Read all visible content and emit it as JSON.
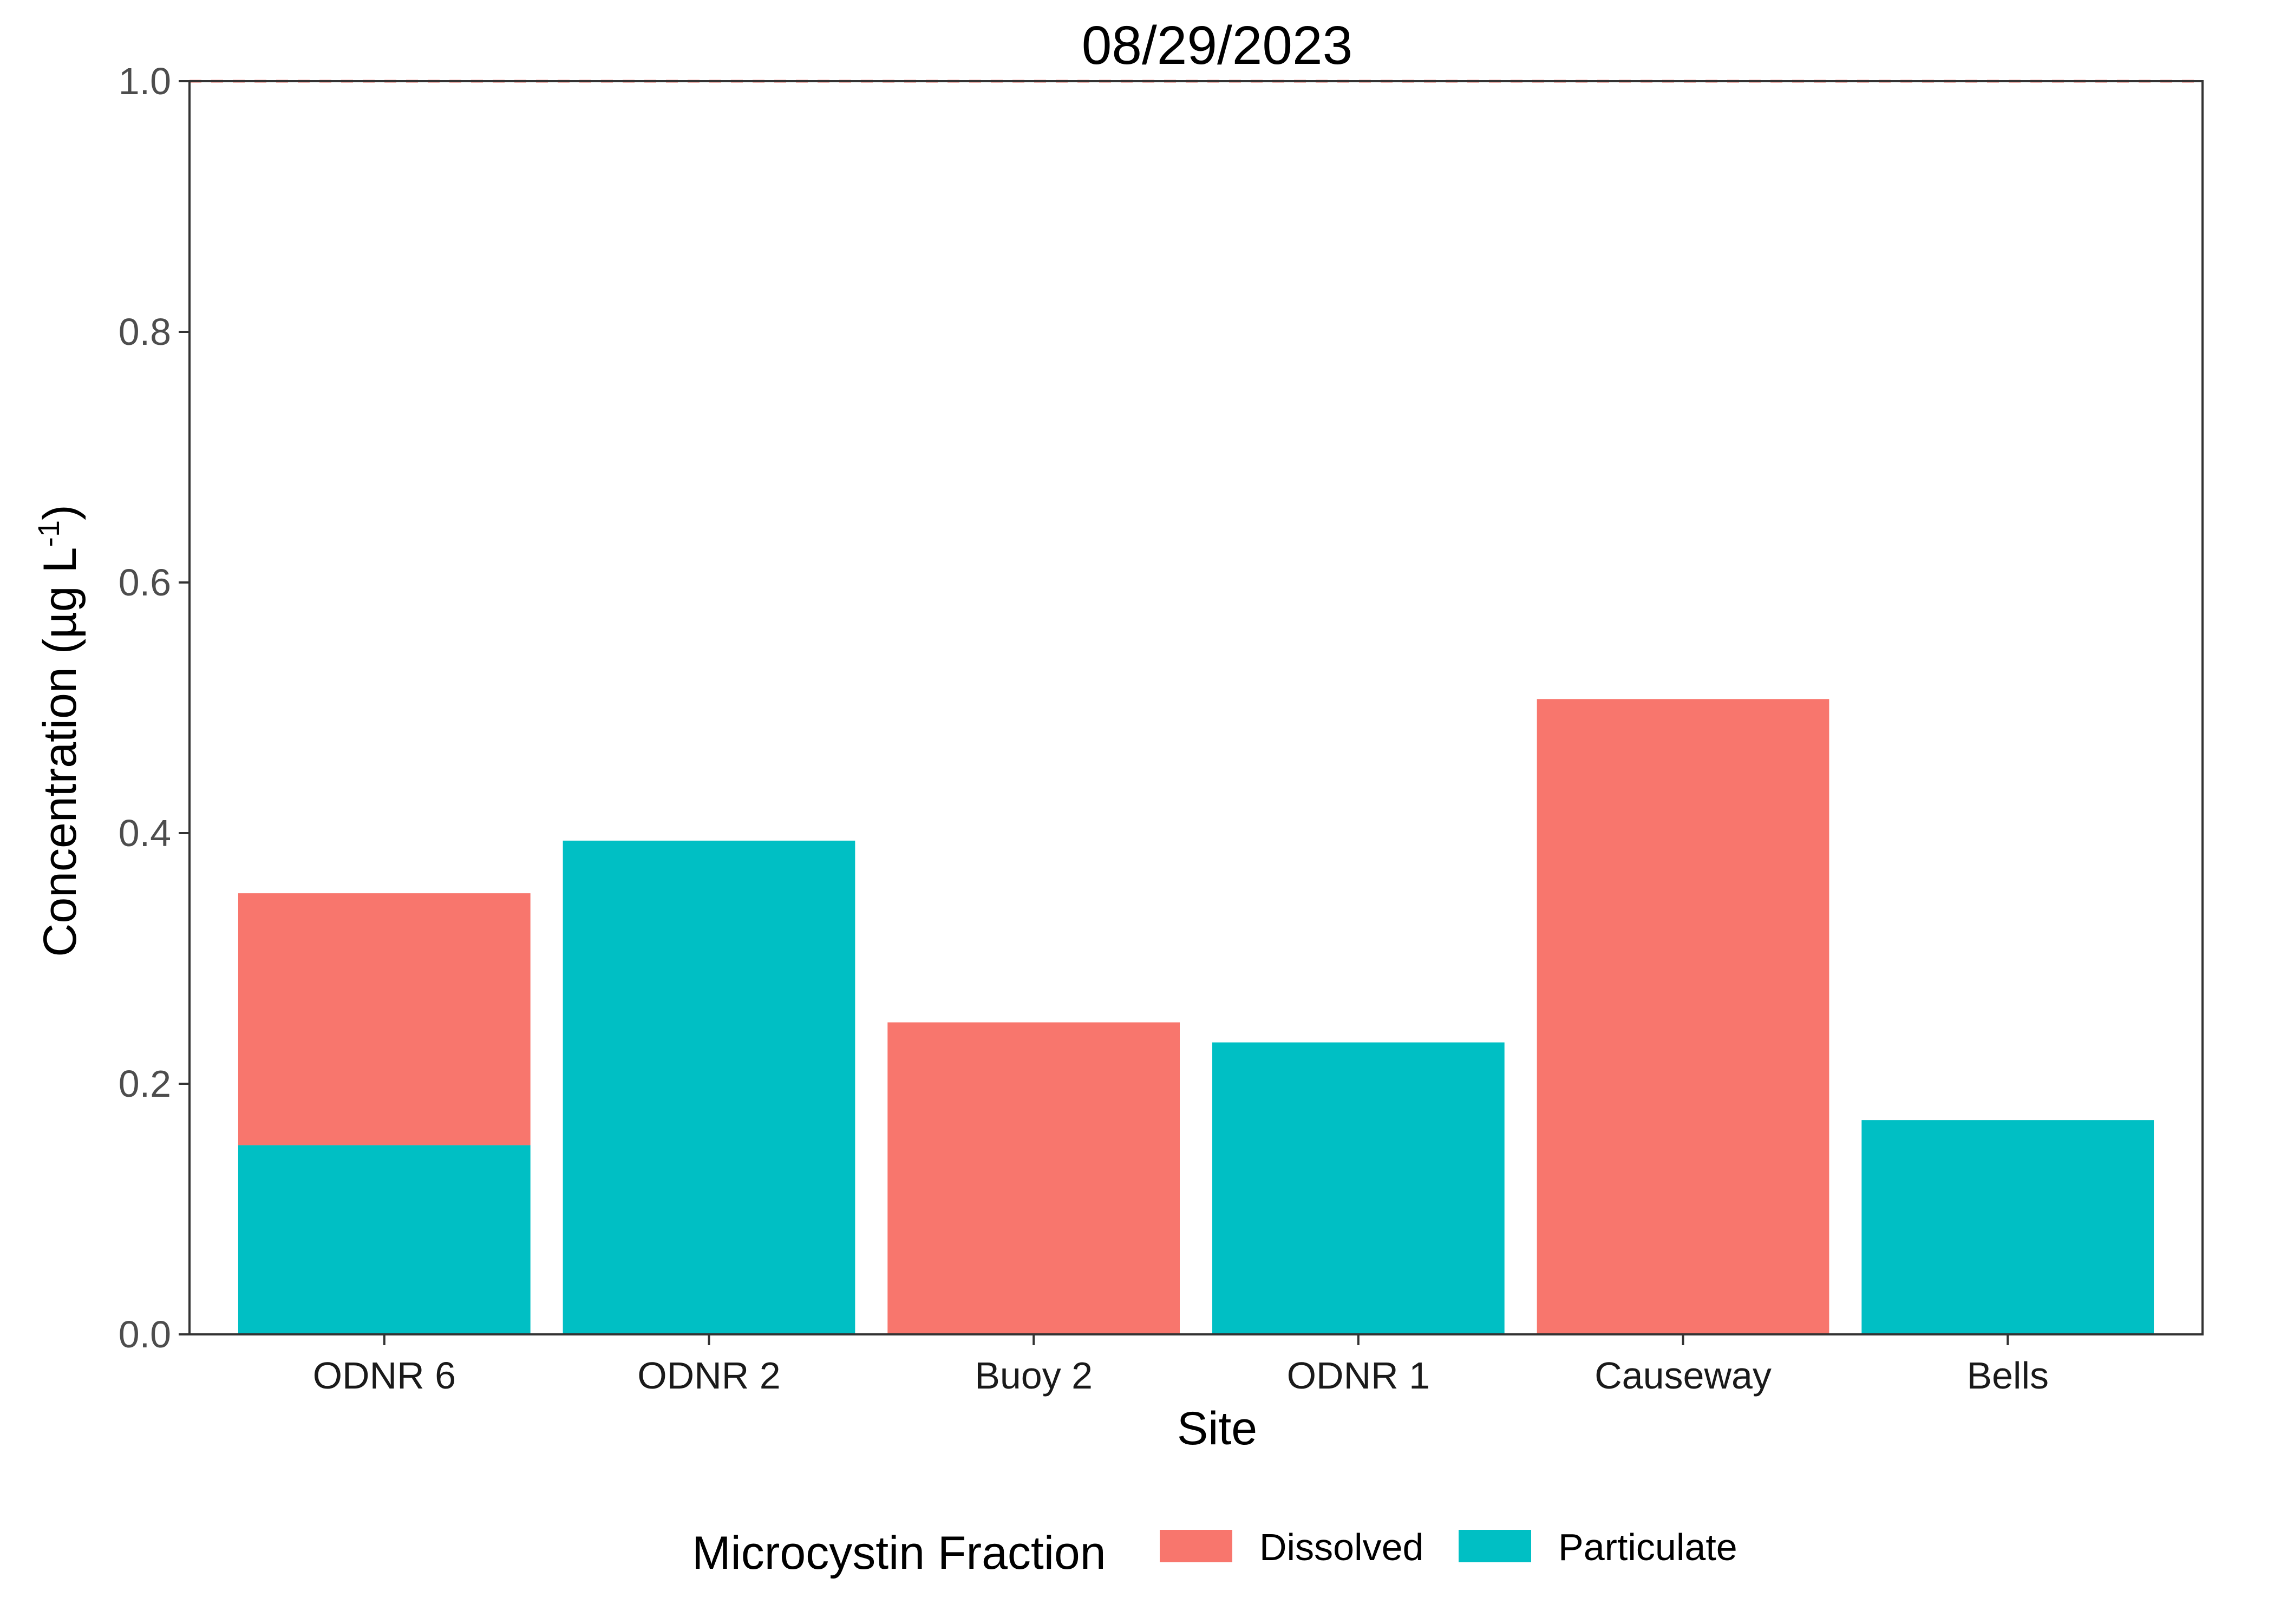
{
  "chart_data": {
    "type": "bar",
    "stacked": true,
    "title": "08/29/2023",
    "xlabel": "Site",
    "ylabel": "Concentration (µg L-1)",
    "ylabel_parts": {
      "base": "Concentration (µg L",
      "superscript": "-1",
      "close": ")"
    },
    "ylim": [
      0,
      1.0
    ],
    "yticks": [
      "0.0",
      "0.2",
      "0.4",
      "0.6",
      "0.8",
      "1.0"
    ],
    "categories": [
      "ODNR 6",
      "ODNR 2",
      "Buoy 2",
      "ODNR 1",
      "Causeway",
      "Bells"
    ],
    "series": [
      {
        "name": "Particulate",
        "color": "#00BFC4",
        "values": [
          0.151,
          0.394,
          0,
          0.233,
          0,
          0.171
        ]
      },
      {
        "name": "Dissolved",
        "color": "#F8766D",
        "values": [
          0.201,
          0,
          0.249,
          0,
          0.507,
          0
        ]
      }
    ],
    "reference_line": {
      "y": 1.0,
      "color": "#F8766D",
      "style": "dashed"
    },
    "grid": false,
    "legend": {
      "title": "Microcystin Fraction",
      "position": "bottom",
      "entries": [
        {
          "label": "Dissolved",
          "color": "#F8766D"
        },
        {
          "label": "Particulate",
          "color": "#00BFC4"
        }
      ]
    }
  }
}
